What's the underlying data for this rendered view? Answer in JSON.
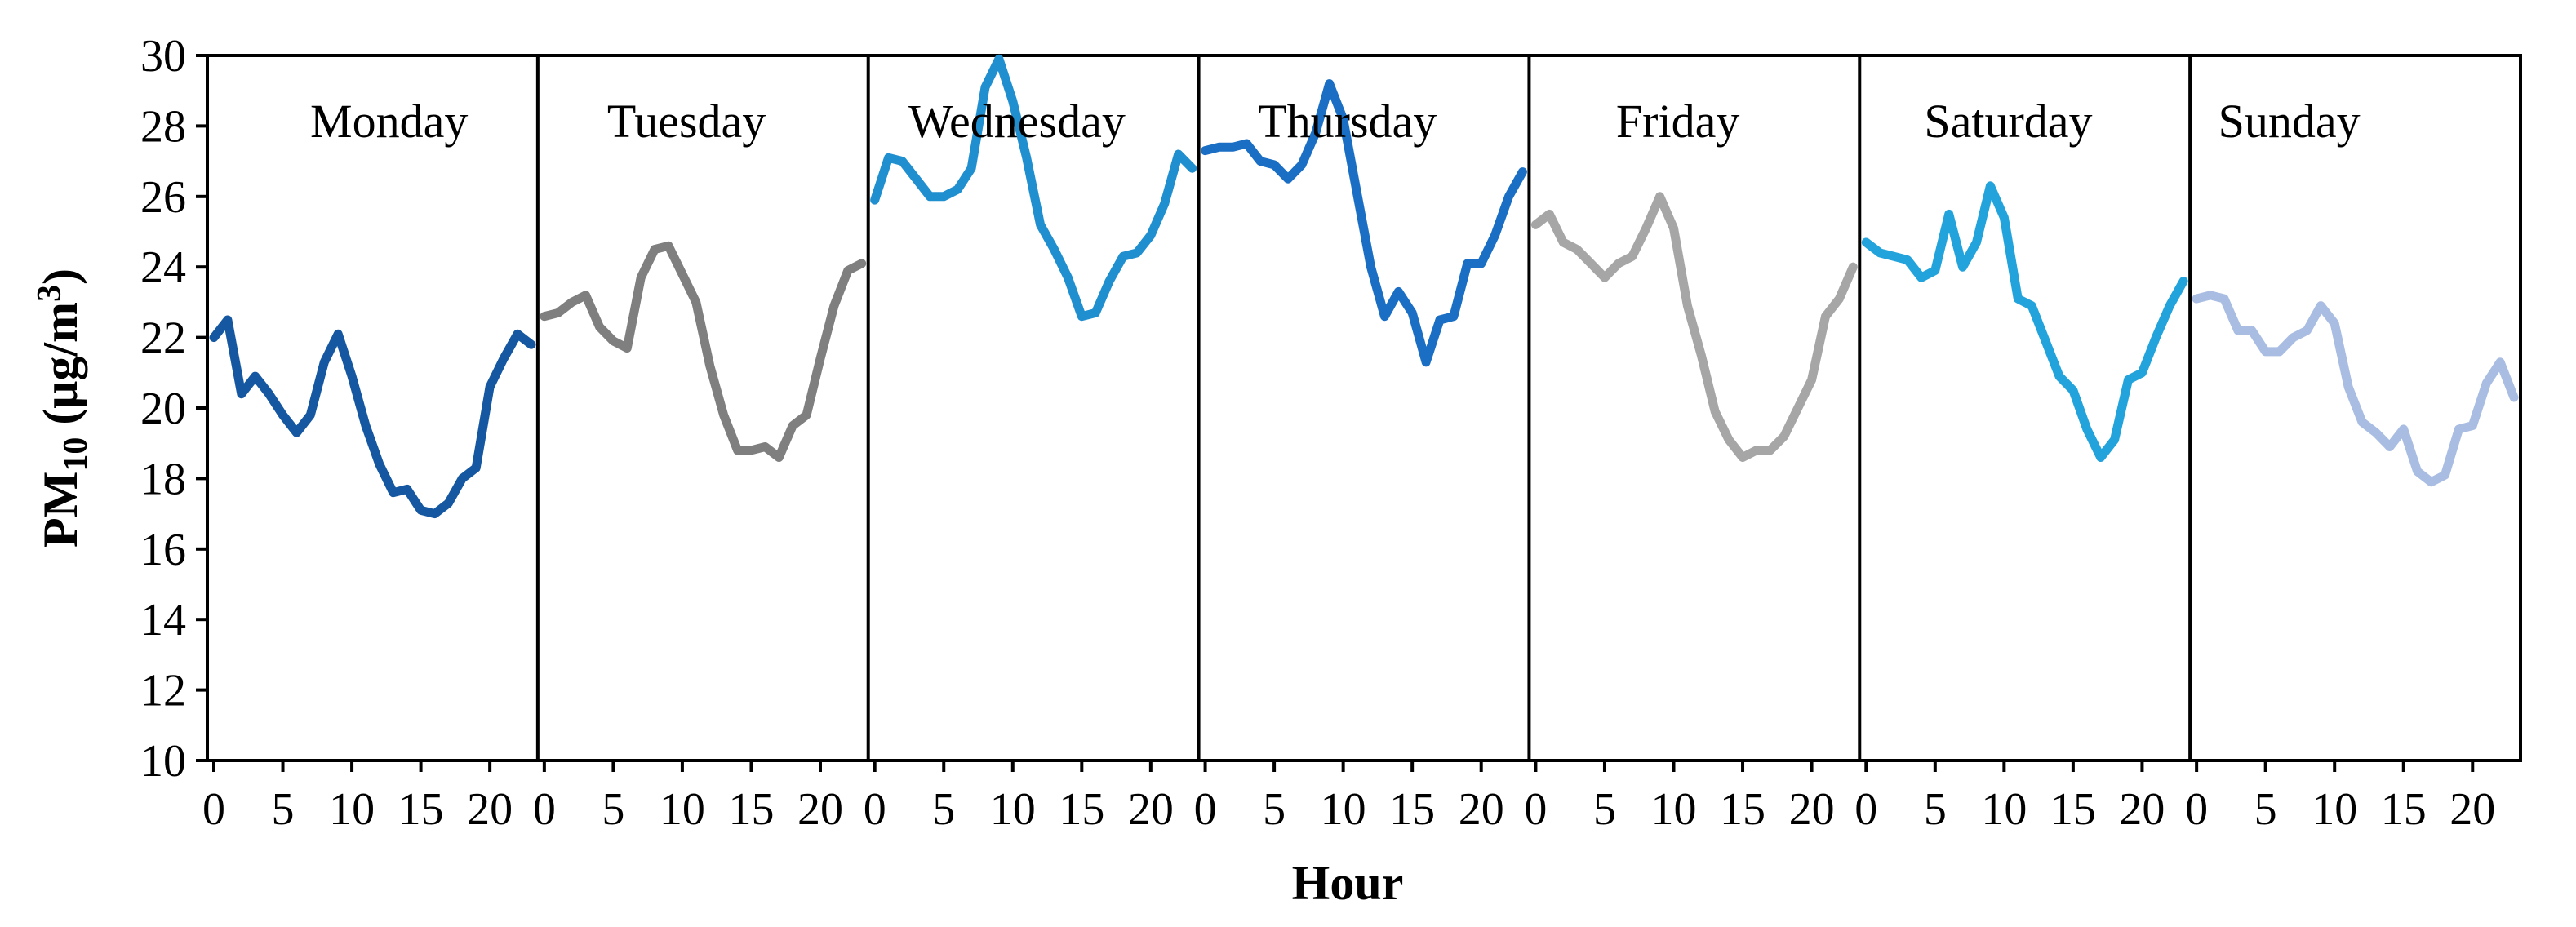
{
  "chart_data": {
    "type": "line",
    "xlabel": "Hour",
    "ylabel": "PM",
    "ylabel_sub": "10",
    "ylabel_unit": " (μg/m",
    "ylabel_sup": "3",
    "ylabel_close": ")",
    "ylim": [
      10,
      30
    ],
    "yticks": [
      10,
      12,
      14,
      16,
      18,
      20,
      22,
      24,
      26,
      28,
      30
    ],
    "xlim": [
      0,
      23
    ],
    "xticks": [
      0,
      5,
      10,
      15,
      20
    ],
    "grid": false,
    "legend": "none",
    "series": [
      {
        "name": "Monday",
        "color": "#1557a0",
        "values": [
          22.0,
          22.5,
          20.4,
          20.9,
          20.4,
          19.8,
          19.3,
          19.8,
          21.3,
          22.1,
          20.9,
          19.5,
          18.4,
          17.6,
          17.7,
          17.1,
          17.0,
          17.3,
          18.0,
          18.3,
          20.6,
          21.4,
          22.1,
          21.8
        ]
      },
      {
        "name": "Tuesday",
        "color": "#7f7f7f",
        "values": [
          22.6,
          22.7,
          23.0,
          23.2,
          22.3,
          21.9,
          21.7,
          23.7,
          24.5,
          24.6,
          23.8,
          23.0,
          21.2,
          19.8,
          18.8,
          18.8,
          18.9,
          18.6,
          19.5,
          19.8,
          21.4,
          22.9,
          23.9,
          24.1
        ]
      },
      {
        "name": "Wednesday",
        "color": "#1f8fd0",
        "values": [
          25.9,
          27.1,
          27.0,
          26.5,
          26.0,
          26.0,
          26.2,
          26.8,
          29.1,
          29.9,
          28.7,
          27.1,
          25.2,
          24.5,
          23.7,
          22.6,
          22.7,
          23.6,
          24.3,
          24.4,
          24.9,
          25.8,
          27.2,
          26.8
        ]
      },
      {
        "name": "Thursday",
        "color": "#1a6fc4",
        "values": [
          27.3,
          27.4,
          27.4,
          27.5,
          27.0,
          26.9,
          26.5,
          26.9,
          27.8,
          29.2,
          28.2,
          26.1,
          24.0,
          22.6,
          23.3,
          22.7,
          21.3,
          22.5,
          22.6,
          24.1,
          24.1,
          24.9,
          26.0,
          26.7
        ]
      },
      {
        "name": "Friday",
        "color": "#a6a6a6",
        "values": [
          25.2,
          25.5,
          24.7,
          24.5,
          24.1,
          23.7,
          24.1,
          24.3,
          25.1,
          26.0,
          25.1,
          22.9,
          21.5,
          19.9,
          19.1,
          18.6,
          18.8,
          18.8,
          19.2,
          20.0,
          20.8,
          22.6,
          23.1,
          24.0
        ]
      },
      {
        "name": "Saturday",
        "color": "#22a3dc",
        "values": [
          24.7,
          24.4,
          24.3,
          24.2,
          23.7,
          23.9,
          25.5,
          24.0,
          24.7,
          26.3,
          25.4,
          23.1,
          22.9,
          21.9,
          20.9,
          20.5,
          19.4,
          18.6,
          19.1,
          20.8,
          21.0,
          22.0,
          22.9,
          23.6
        ]
      },
      {
        "name": "Sunday",
        "color": "#a9bde3",
        "values": [
          23.1,
          23.2,
          23.1,
          22.2,
          22.2,
          21.6,
          21.6,
          22.0,
          22.2,
          22.9,
          22.4,
          20.6,
          19.6,
          19.3,
          18.9,
          19.4,
          18.2,
          17.9,
          18.1,
          19.4,
          19.5,
          20.7,
          21.3,
          20.3
        ]
      }
    ]
  }
}
